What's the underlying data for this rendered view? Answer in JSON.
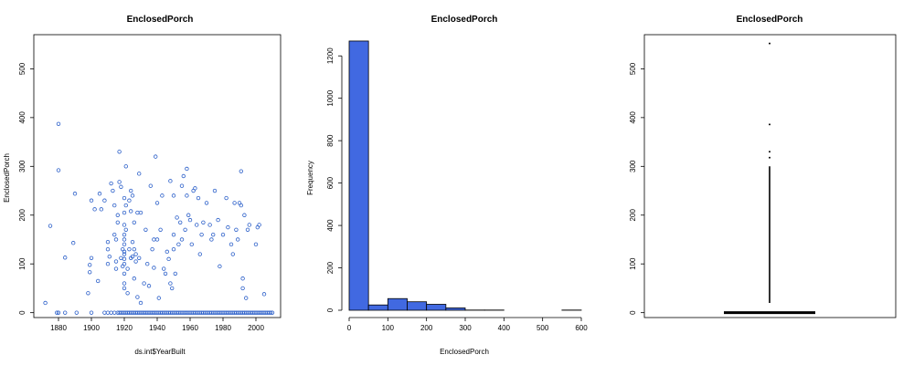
{
  "colors": {
    "point": "#2b5fc9",
    "bar": "#4169e1",
    "box": "#000000"
  },
  "chart_data": [
    {
      "type": "scatter",
      "title": "EnclosedPorch",
      "xlabel": "ds.int$YearBuilt",
      "ylabel": "EnclosedPorch",
      "xlim": [
        1865,
        2015
      ],
      "ylim": [
        -10,
        570
      ],
      "xticks": [
        1880,
        1900,
        1920,
        1940,
        1960,
        1980,
        2000
      ],
      "yticks": [
        0,
        100,
        200,
        300,
        400,
        500
      ],
      "points": [
        [
          1872,
          20
        ],
        [
          1875,
          178
        ],
        [
          1880,
          387
        ],
        [
          1880,
          292
        ],
        [
          1884,
          113
        ],
        [
          1889,
          143
        ],
        [
          1890,
          244
        ],
        [
          1898,
          40
        ],
        [
          1899,
          83
        ],
        [
          1899,
          98
        ],
        [
          1900,
          112
        ],
        [
          1900,
          230
        ],
        [
          1902,
          212
        ],
        [
          1904,
          65
        ],
        [
          1905,
          244
        ],
        [
          1906,
          212
        ],
        [
          1908,
          230
        ],
        [
          1910,
          145
        ],
        [
          1910,
          130
        ],
        [
          1910,
          100
        ],
        [
          1911,
          115
        ],
        [
          1912,
          265
        ],
        [
          1913,
          250
        ],
        [
          1914,
          220
        ],
        [
          1914,
          160
        ],
        [
          1915,
          150
        ],
        [
          1915,
          105
        ],
        [
          1915,
          90
        ],
        [
          1916,
          200
        ],
        [
          1916,
          185
        ],
        [
          1917,
          330
        ],
        [
          1917,
          268
        ],
        [
          1918,
          258
        ],
        [
          1918,
          112
        ],
        [
          1919,
          130
        ],
        [
          1919,
          95
        ],
        [
          1920,
          235
        ],
        [
          1920,
          205
        ],
        [
          1920,
          180
        ],
        [
          1920,
          160
        ],
        [
          1920,
          150
        ],
        [
          1920,
          140
        ],
        [
          1920,
          125
        ],
        [
          1920,
          120
        ],
        [
          1920,
          110
        ],
        [
          1920,
          100
        ],
        [
          1920,
          80
        ],
        [
          1920,
          60
        ],
        [
          1920,
          50
        ],
        [
          1921,
          300
        ],
        [
          1921,
          220
        ],
        [
          1921,
          170
        ],
        [
          1922,
          90
        ],
        [
          1922,
          40
        ],
        [
          1923,
          230
        ],
        [
          1923,
          130
        ],
        [
          1924,
          250
        ],
        [
          1924,
          208
        ],
        [
          1924,
          112
        ],
        [
          1925,
          240
        ],
        [
          1925,
          145
        ],
        [
          1925,
          115
        ],
        [
          1926,
          185
        ],
        [
          1926,
          130
        ],
        [
          1926,
          70
        ],
        [
          1927,
          120
        ],
        [
          1927,
          105
        ],
        [
          1928,
          205
        ],
        [
          1928,
          32
        ],
        [
          1929,
          285
        ],
        [
          1929,
          112
        ],
        [
          1930,
          205
        ],
        [
          1930,
          20
        ],
        [
          1932,
          60
        ],
        [
          1933,
          170
        ],
        [
          1934,
          100
        ],
        [
          1935,
          55
        ],
        [
          1936,
          260
        ],
        [
          1937,
          130
        ],
        [
          1938,
          92
        ],
        [
          1938,
          150
        ],
        [
          1939,
          320
        ],
        [
          1940,
          225
        ],
        [
          1940,
          150
        ],
        [
          1941,
          30
        ],
        [
          1942,
          170
        ],
        [
          1943,
          240
        ],
        [
          1944,
          90
        ],
        [
          1945,
          80
        ],
        [
          1946,
          125
        ],
        [
          1947,
          110
        ],
        [
          1948,
          270
        ],
        [
          1948,
          60
        ],
        [
          1949,
          50
        ],
        [
          1950,
          130
        ],
        [
          1950,
          160
        ],
        [
          1950,
          240
        ],
        [
          1951,
          80
        ],
        [
          1952,
          195
        ],
        [
          1953,
          140
        ],
        [
          1954,
          185
        ],
        [
          1955,
          260
        ],
        [
          1955,
          150
        ],
        [
          1956,
          280
        ],
        [
          1957,
          170
        ],
        [
          1958,
          295
        ],
        [
          1958,
          240
        ],
        [
          1959,
          200
        ],
        [
          1960,
          190
        ],
        [
          1961,
          140
        ],
        [
          1962,
          250
        ],
        [
          1963,
          255
        ],
        [
          1964,
          180
        ],
        [
          1965,
          235
        ],
        [
          1966,
          120
        ],
        [
          1967,
          160
        ],
        [
          1968,
          185
        ],
        [
          1970,
          225
        ],
        [
          1972,
          180
        ],
        [
          1973,
          150
        ],
        [
          1974,
          160
        ],
        [
          1975,
          250
        ],
        [
          1977,
          190
        ],
        [
          1978,
          95
        ],
        [
          1980,
          160
        ],
        [
          1982,
          235
        ],
        [
          1983,
          175
        ],
        [
          1985,
          140
        ],
        [
          1986,
          120
        ],
        [
          1987,
          225
        ],
        [
          1988,
          170
        ],
        [
          1989,
          150
        ],
        [
          1990,
          225
        ],
        [
          1991,
          220
        ],
        [
          1991,
          290
        ],
        [
          1992,
          70
        ],
        [
          1992,
          50
        ],
        [
          1993,
          200
        ],
        [
          1994,
          30
        ],
        [
          1995,
          170
        ],
        [
          1996,
          180
        ],
        [
          2000,
          140
        ],
        [
          2001,
          175
        ],
        [
          2002,
          180
        ],
        [
          2005,
          38
        ]
      ],
      "zero_x": [
        1879,
        1880,
        1884,
        1891,
        1900,
        1908,
        1910,
        1912,
        1914,
        1916,
        1917,
        1918,
        1919,
        1920,
        1921,
        1922,
        1923,
        1924,
        1925,
        1926,
        1927,
        1928,
        1929,
        1930,
        1931,
        1932,
        1933,
        1934,
        1935,
        1936,
        1937,
        1938,
        1939,
        1940,
        1941,
        1942,
        1943,
        1944,
        1945,
        1946,
        1947,
        1948,
        1949,
        1950,
        1951,
        1952,
        1953,
        1954,
        1955,
        1956,
        1957,
        1958,
        1959,
        1960,
        1961,
        1962,
        1963,
        1964,
        1965,
        1966,
        1967,
        1968,
        1969,
        1970,
        1971,
        1972,
        1973,
        1974,
        1975,
        1976,
        1977,
        1978,
        1979,
        1980,
        1981,
        1982,
        1983,
        1984,
        1985,
        1986,
        1987,
        1988,
        1989,
        1990,
        1991,
        1992,
        1993,
        1994,
        1995,
        1996,
        1997,
        1998,
        1999,
        2000,
        2001,
        2002,
        2003,
        2004,
        2005,
        2006,
        2007,
        2008,
        2009,
        2010
      ]
    },
    {
      "type": "bar",
      "title": "EnclosedPorch",
      "xlabel": "EnclosedPorch",
      "ylabel": "Frequency",
      "xlim": [
        0,
        600
      ],
      "ylim": [
        0,
        1300
      ],
      "xticks": [
        0,
        100,
        200,
        300,
        400,
        500,
        600
      ],
      "yticks": [
        0,
        200,
        400,
        600,
        800,
        1000,
        1200
      ],
      "bins": [
        {
          "x0": 0,
          "x1": 50,
          "value": 1270
        },
        {
          "x0": 50,
          "x1": 100,
          "value": 25
        },
        {
          "x0": 100,
          "x1": 150,
          "value": 55
        },
        {
          "x0": 150,
          "x1": 200,
          "value": 40
        },
        {
          "x0": 200,
          "x1": 250,
          "value": 28
        },
        {
          "x0": 250,
          "x1": 300,
          "value": 11
        },
        {
          "x0": 300,
          "x1": 350,
          "value": 1
        },
        {
          "x0": 350,
          "x1": 400,
          "value": 1
        },
        {
          "x0": 550,
          "x1": 600,
          "value": 1
        }
      ]
    },
    {
      "type": "box",
      "title": "EnclosedPorch",
      "ylim": [
        -10,
        570
      ],
      "yticks": [
        0,
        100,
        200,
        300,
        400,
        500
      ],
      "median": 0,
      "q1": 0,
      "q3": 0,
      "outliers_dense_range": [
        20,
        300
      ],
      "outliers": [
        318,
        330,
        386,
        552
      ]
    }
  ]
}
